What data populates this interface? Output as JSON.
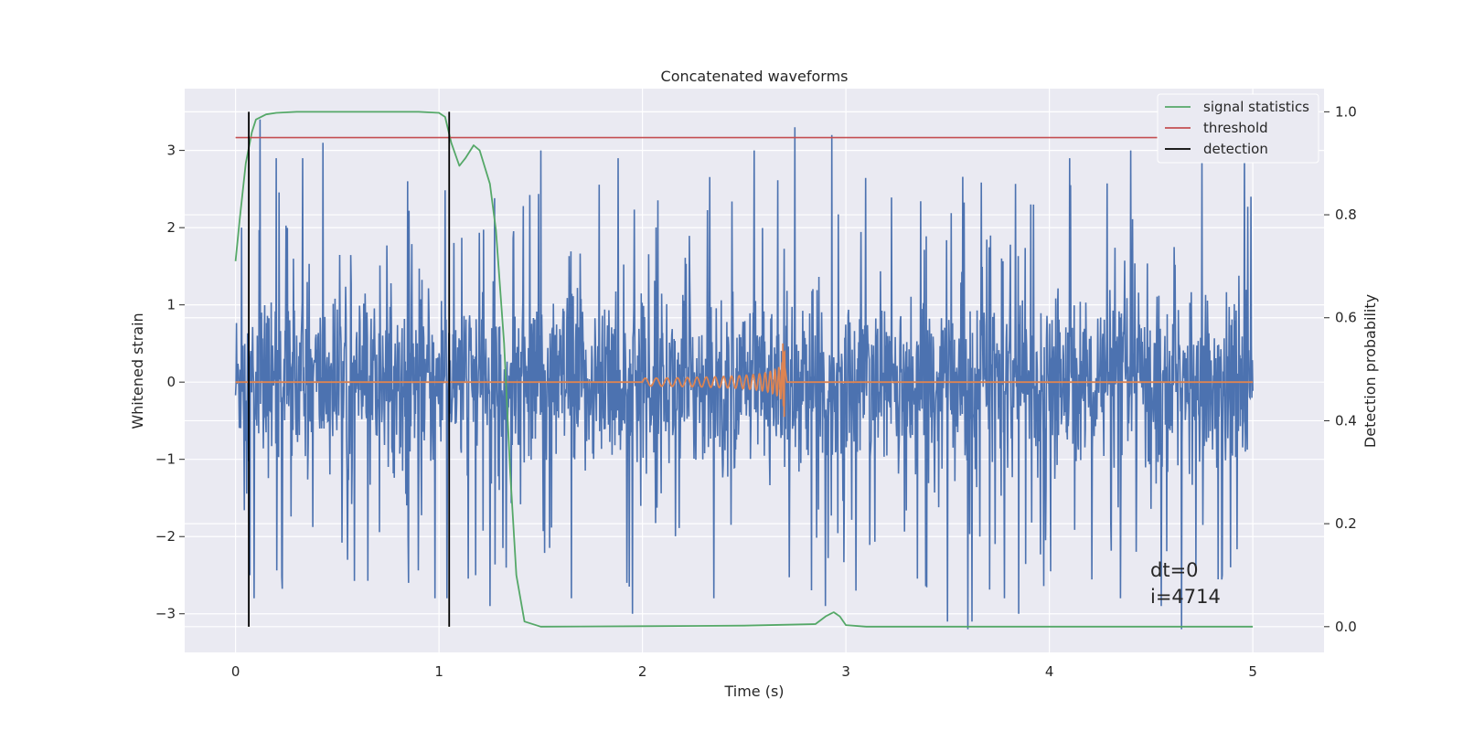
{
  "chart_data": {
    "type": "line",
    "title": "Concatenated waveforms",
    "xlabel": "Time (s)",
    "ylabel": "Whitened strain",
    "y2label": "Detection probability",
    "xlim": [
      -0.25,
      5.35
    ],
    "ylim": [
      -3.5,
      3.8
    ],
    "y2lim": [
      -0.05,
      1.045
    ],
    "xticks": [
      0,
      1,
      2,
      3,
      4,
      5
    ],
    "xtick_labels": [
      "0",
      "1",
      "2",
      "3",
      "4",
      "5"
    ],
    "yticks": [
      -3,
      -2,
      -1,
      0,
      1,
      2,
      3
    ],
    "ytick_labels": [
      "−3",
      "−2",
      "−1",
      "0",
      "1",
      "2",
      "3"
    ],
    "y2ticks": [
      0.0,
      0.2,
      0.4,
      0.6,
      0.8,
      1.0
    ],
    "y2tick_labels": [
      "0.0",
      "0.2",
      "0.4",
      "0.6",
      "0.8",
      "1.0"
    ],
    "grid": true,
    "legend_position": "top-right",
    "colors": {
      "background": "#eaeaf2",
      "grid": "#ffffff",
      "strain": "#4c72b0",
      "template": "#dd8452",
      "statistics": "#55a868",
      "threshold": "#c44e52",
      "detection": "#000000"
    },
    "series": [
      {
        "name": "",
        "axis": "left",
        "description_key": "strain",
        "t_start": 0.0,
        "t_end": 5.0,
        "std": 0.55,
        "spikes": [
          [
            0.03,
            2.0
          ],
          [
            0.07,
            -2.5
          ],
          [
            0.09,
            -2.8
          ],
          [
            0.12,
            3.4
          ],
          [
            0.2,
            2.9
          ],
          [
            0.33,
            2.9
          ],
          [
            0.43,
            3.1
          ],
          [
            0.55,
            -2.3
          ],
          [
            0.85,
            -2.6
          ],
          [
            0.98,
            -2.8
          ],
          [
            1.04,
            -2.8
          ],
          [
            1.18,
            -2.5
          ],
          [
            1.25,
            -2.9
          ],
          [
            1.5,
            3.0
          ],
          [
            1.65,
            -2.8
          ],
          [
            1.88,
            2.9
          ],
          [
            1.95,
            -3.0
          ],
          [
            2.35,
            -2.8
          ],
          [
            2.55,
            3.0
          ],
          [
            2.75,
            3.3
          ],
          [
            2.9,
            -2.9
          ],
          [
            2.93,
            3.2
          ],
          [
            3.05,
            -2.7
          ],
          [
            3.5,
            -3.1
          ],
          [
            3.6,
            -3.2
          ],
          [
            3.62,
            -3.1
          ],
          [
            3.78,
            -2.8
          ],
          [
            3.85,
            -3.0
          ],
          [
            4.1,
            2.9
          ],
          [
            4.35,
            -2.8
          ],
          [
            4.4,
            3.0
          ],
          [
            4.55,
            -2.9
          ],
          [
            4.65,
            -3.2
          ],
          [
            4.75,
            2.9
          ],
          [
            4.85,
            -2.5
          ],
          [
            4.96,
            3.0
          ],
          [
            4.99,
            2.4
          ]
        ]
      },
      {
        "name": "",
        "axis": "left",
        "description_key": "template",
        "t_start": 2.0,
        "t_end": 2.7,
        "amplitude_start": 0.05,
        "amplitude_peak": 0.5,
        "amplitude_trough": -0.45
      },
      {
        "name": "signal statistics",
        "axis": "right",
        "x": [
          0.0,
          0.02,
          0.05,
          0.08,
          0.1,
          0.15,
          0.2,
          0.3,
          0.6,
          0.9,
          1.0,
          1.03,
          1.06,
          1.1,
          1.13,
          1.17,
          1.2,
          1.25,
          1.28,
          1.32,
          1.35,
          1.38,
          1.42,
          1.5,
          2.0,
          2.5,
          2.85,
          2.9,
          2.94,
          2.97,
          3.0,
          3.1,
          4.0,
          5.0
        ],
        "y": [
          0.71,
          0.79,
          0.9,
          0.96,
          0.985,
          0.995,
          0.998,
          1.0,
          1.0,
          1.0,
          0.998,
          0.99,
          0.94,
          0.895,
          0.91,
          0.935,
          0.925,
          0.86,
          0.77,
          0.55,
          0.3,
          0.1,
          0.01,
          0.0,
          0.001,
          0.002,
          0.005,
          0.02,
          0.028,
          0.02,
          0.003,
          0.0,
          0.0,
          0.0
        ]
      },
      {
        "name": "threshold",
        "axis": "right",
        "x": [
          0.0,
          5.0
        ],
        "y": [
          0.95,
          0.95
        ]
      },
      {
        "name": "detection",
        "axis": "right",
        "x": [
          0.065,
          1.05
        ],
        "y_range": [
          0.0,
          1.0
        ]
      }
    ],
    "annotations": [
      "dt=0",
      "i=4714"
    ]
  }
}
